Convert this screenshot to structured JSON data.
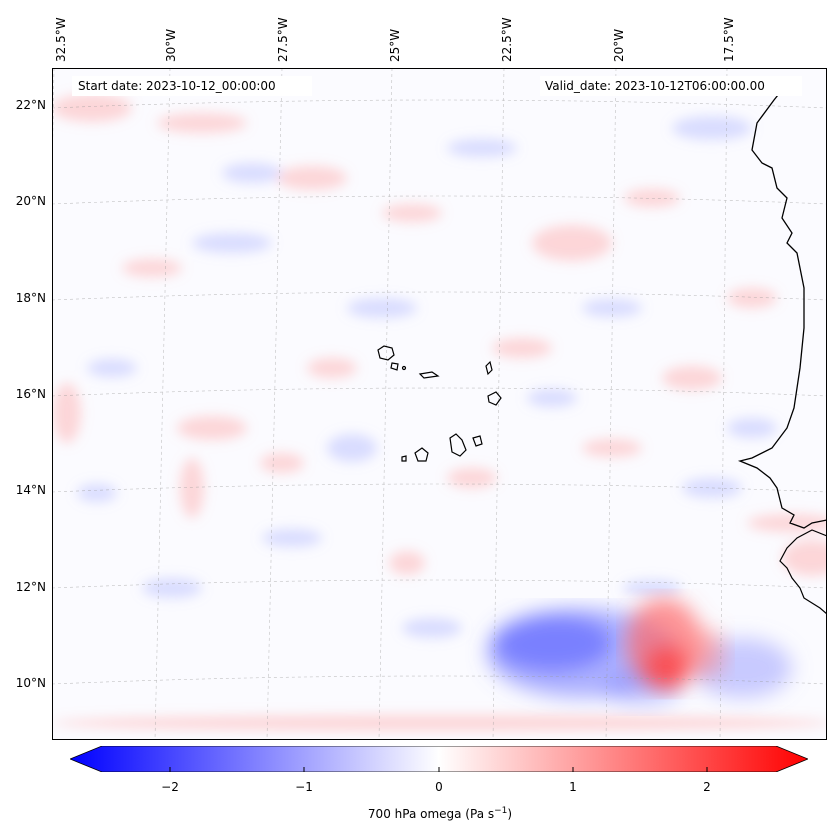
{
  "map": {
    "start_date_label": "Start date: 2023-10-12_00:00:00",
    "valid_date_label": "Valid_date: 2023-10-12T06:00:00.00",
    "lon_ticks": [
      "32.5°W",
      "30°W",
      "27.5°W",
      "25°W",
      "22.5°W",
      "20°W",
      "17.5°W"
    ],
    "lat_ticks": [
      "22°N",
      "20°N",
      "18°N",
      "16°N",
      "14°N",
      "12°N",
      "10°N"
    ],
    "colors": {
      "neg": "#0000ff",
      "zero": "#ffffff",
      "pos": "#ff0000",
      "coast": "#000000"
    }
  },
  "colorbar": {
    "label": "700 hPa omega (Pa s",
    "label_sup": "−1",
    "label_end": ")",
    "ticks": [
      "−2",
      "−1",
      "0",
      "1",
      "2"
    ],
    "range": [
      -2.6,
      2.6
    ]
  }
}
